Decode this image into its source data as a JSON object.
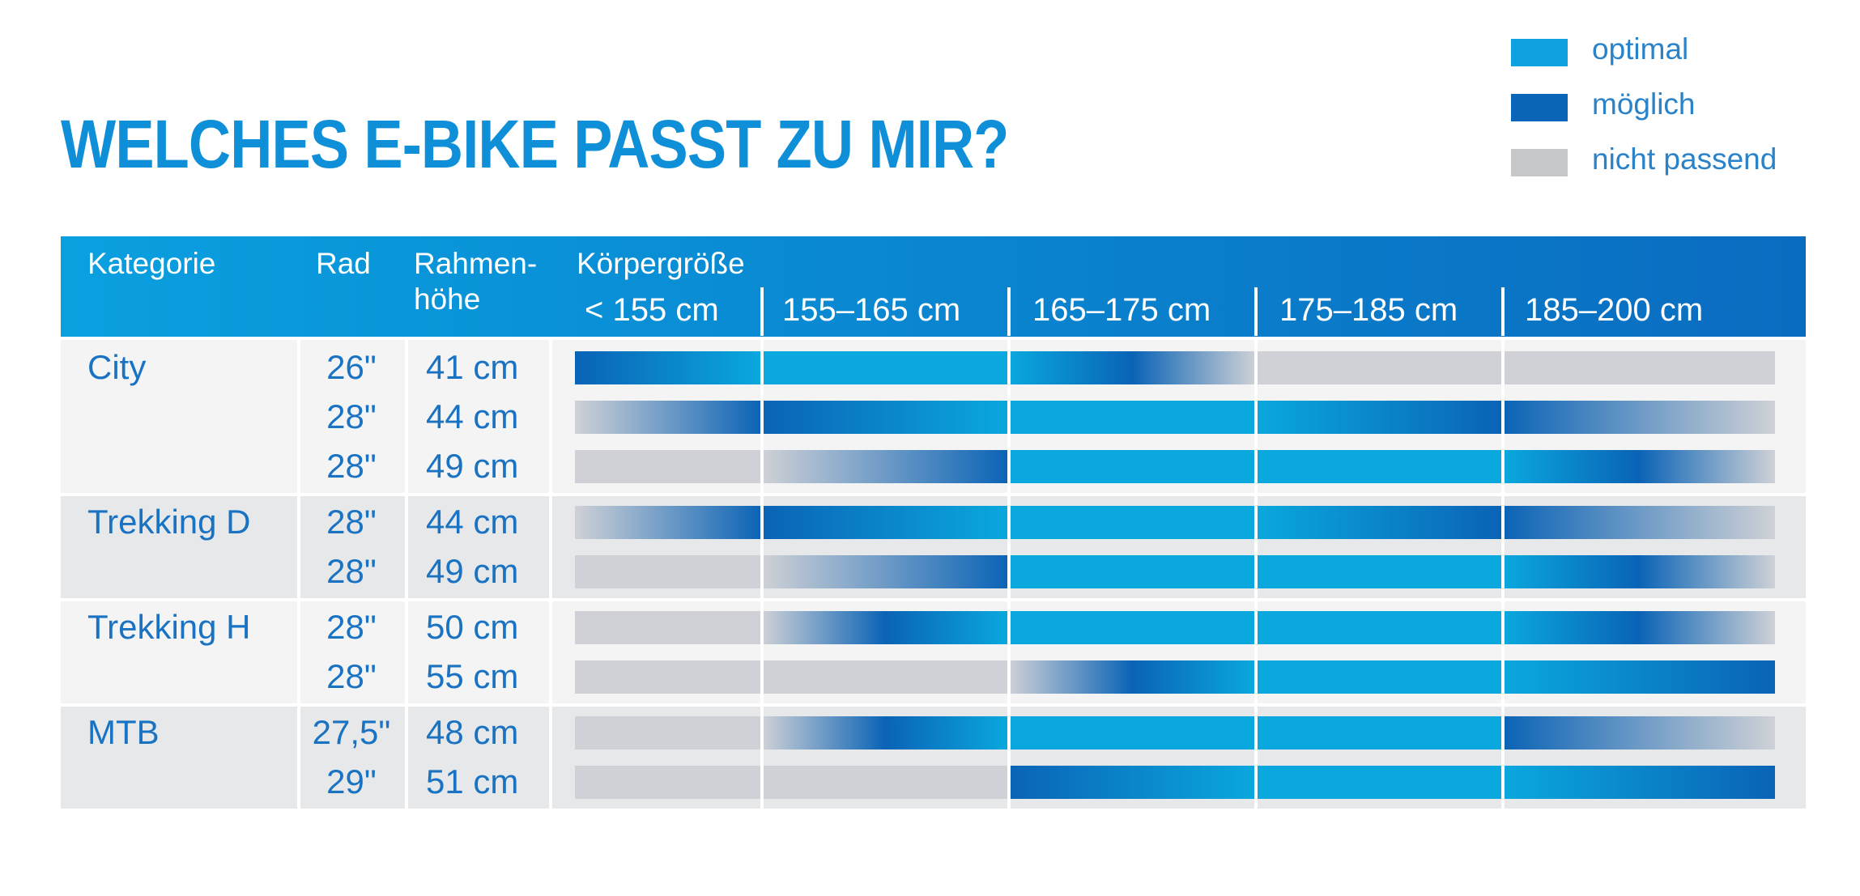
{
  "title": "WELCHES E-BIKE PASST ZU MIR?",
  "legend": [
    {
      "label": "optimal",
      "color": "#0ea3e0"
    },
    {
      "label": "möglich",
      "color": "#0a64b8"
    },
    {
      "label": "nicht passend",
      "color": "#c6c7c9"
    }
  ],
  "colors": {
    "optimal": "#0aa8de",
    "moeglich": "#0a63b6",
    "nicht_passend": "#cfd1d6",
    "header_left": "#0aa0e0",
    "header_right": "#0a6cc0",
    "text": "#1a73c2",
    "row_light": "#f4f4f4",
    "row_dark": "#e7e8e9"
  },
  "chart_data": {
    "type": "table",
    "title": "WELCHES E-BIKE PASST ZU MIR?",
    "header": {
      "kategorie": "Kategorie",
      "rad": "Rad",
      "rahmen_line1": "Rahmen-",
      "rahmen_line2": "höhe",
      "koerpergroesse": "Körpergröße"
    },
    "size_ranges": [
      "< 155 cm",
      "155–165 cm",
      "165–175 cm",
      "175–185 cm",
      "185–200 cm"
    ],
    "categories": [
      {
        "name": "City",
        "rows": [
          {
            "rad": "26\"",
            "rahmen": "41 cm",
            "fit": [
              [
                "moeglich",
                "optimal"
              ],
              [
                "optimal",
                "optimal"
              ],
              [
                "optimal",
                "moeglich",
                "nicht_passend"
              ],
              [
                "nicht_passend",
                "nicht_passend"
              ],
              [
                "nicht_passend",
                "nicht_passend"
              ]
            ]
          },
          {
            "rad": "28\"",
            "rahmen": "44 cm",
            "fit": [
              [
                "nicht_passend",
                "moeglich"
              ],
              [
                "moeglich",
                "optimal"
              ],
              [
                "optimal",
                "optimal"
              ],
              [
                "optimal",
                "moeglich"
              ],
              [
                "moeglich",
                "nicht_passend"
              ]
            ]
          },
          {
            "rad": "28\"",
            "rahmen": "49 cm",
            "fit": [
              [
                "nicht_passend",
                "nicht_passend"
              ],
              [
                "nicht_passend",
                "moeglich"
              ],
              [
                "optimal",
                "optimal"
              ],
              [
                "optimal",
                "optimal"
              ],
              [
                "optimal",
                "moeglich",
                "nicht_passend"
              ]
            ]
          }
        ]
      },
      {
        "name": "Trekking D",
        "rows": [
          {
            "rad": "28\"",
            "rahmen": "44 cm",
            "fit": [
              [
                "nicht_passend",
                "moeglich"
              ],
              [
                "moeglich",
                "optimal"
              ],
              [
                "optimal",
                "optimal"
              ],
              [
                "optimal",
                "moeglich"
              ],
              [
                "moeglich",
                "nicht_passend"
              ]
            ]
          },
          {
            "rad": "28\"",
            "rahmen": "49 cm",
            "fit": [
              [
                "nicht_passend",
                "nicht_passend"
              ],
              [
                "nicht_passend",
                "moeglich"
              ],
              [
                "optimal",
                "optimal"
              ],
              [
                "optimal",
                "optimal"
              ],
              [
                "optimal",
                "moeglich",
                "nicht_passend"
              ]
            ]
          }
        ]
      },
      {
        "name": "Trekking H",
        "rows": [
          {
            "rad": "28\"",
            "rahmen": "50 cm",
            "fit": [
              [
                "nicht_passend",
                "nicht_passend"
              ],
              [
                "nicht_passend",
                "moeglich",
                "optimal"
              ],
              [
                "optimal",
                "optimal"
              ],
              [
                "optimal",
                "optimal"
              ],
              [
                "optimal",
                "moeglich",
                "nicht_passend"
              ]
            ]
          },
          {
            "rad": "28\"",
            "rahmen": "55 cm",
            "fit": [
              [
                "nicht_passend",
                "nicht_passend"
              ],
              [
                "nicht_passend",
                "nicht_passend"
              ],
              [
                "nicht_passend",
                "moeglich",
                "optimal"
              ],
              [
                "optimal",
                "optimal"
              ],
              [
                "optimal",
                "moeglich"
              ]
            ]
          }
        ]
      },
      {
        "name": "MTB",
        "rows": [
          {
            "rad": "27,5\"",
            "rahmen": "48 cm",
            "fit": [
              [
                "nicht_passend",
                "nicht_passend"
              ],
              [
                "nicht_passend",
                "moeglich",
                "optimal"
              ],
              [
                "optimal",
                "optimal"
              ],
              [
                "optimal",
                "optimal"
              ],
              [
                "moeglich",
                "nicht_passend"
              ]
            ]
          },
          {
            "rad": "29\"",
            "rahmen": "51 cm",
            "fit": [
              [
                "nicht_passend",
                "nicht_passend"
              ],
              [
                "nicht_passend",
                "nicht_passend"
              ],
              [
                "moeglich",
                "optimal"
              ],
              [
                "optimal",
                "optimal"
              ],
              [
                "optimal",
                "moeglich"
              ]
            ]
          }
        ]
      }
    ]
  }
}
